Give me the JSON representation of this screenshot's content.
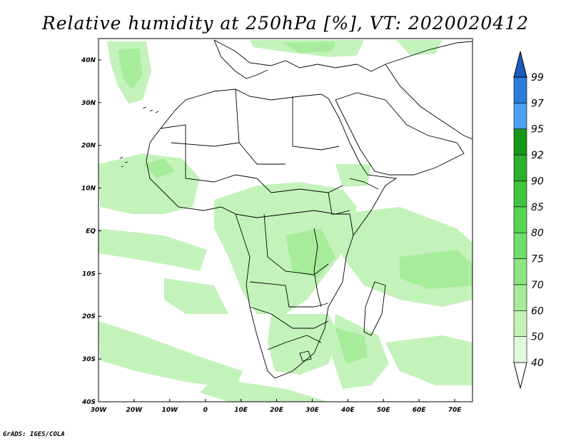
{
  "title": "Relative humidity at 250hPa [%], VT: 2020020412",
  "credit": "GrADS: IGES/COLA",
  "map": {
    "lon_range": [
      -30,
      75
    ],
    "lat_range": [
      -40,
      45
    ],
    "lon_ticks": [
      {
        "value": -30,
        "label": "30W"
      },
      {
        "value": -20,
        "label": "20W"
      },
      {
        "value": -10,
        "label": "10W"
      },
      {
        "value": 0,
        "label": "0"
      },
      {
        "value": 10,
        "label": "10E"
      },
      {
        "value": 20,
        "label": "20E"
      },
      {
        "value": 30,
        "label": "30E"
      },
      {
        "value": 40,
        "label": "40E"
      },
      {
        "value": 50,
        "label": "50E"
      },
      {
        "value": 60,
        "label": "60E"
      },
      {
        "value": 70,
        "label": "70E"
      }
    ],
    "lat_ticks": [
      {
        "value": 40,
        "label": "40N"
      },
      {
        "value": 30,
        "label": "30N"
      },
      {
        "value": 20,
        "label": "20N"
      },
      {
        "value": 10,
        "label": "10N"
      },
      {
        "value": 0,
        "label": "EQ"
      },
      {
        "value": -10,
        "label": "10S"
      },
      {
        "value": -20,
        "label": "20S"
      },
      {
        "value": -30,
        "label": "30S"
      },
      {
        "value": -40,
        "label": "40S"
      }
    ]
  },
  "colorbar": {
    "levels": [
      {
        "label": "40",
        "color": "#ffffff"
      },
      {
        "label": "50",
        "color": "#e1f9dc"
      },
      {
        "label": "60",
        "color": "#c4f2bb"
      },
      {
        "label": "70",
        "color": "#a6ec9a"
      },
      {
        "label": "75",
        "color": "#8be582"
      },
      {
        "label": "80",
        "color": "#6fde6c"
      },
      {
        "label": "85",
        "color": "#55d456"
      },
      {
        "label": "90",
        "color": "#3ec43e"
      },
      {
        "label": "92",
        "color": "#2bb12b"
      },
      {
        "label": "95",
        "color": "#179717"
      },
      {
        "label": "97",
        "color": "#4aa0f0"
      },
      {
        "label": "99",
        "color": "#2b7ddb"
      }
    ],
    "top_color": "#1a5bbd"
  },
  "fill_colors": {
    "light": "#c4f2bb",
    "medium": "#a6ec9a"
  }
}
